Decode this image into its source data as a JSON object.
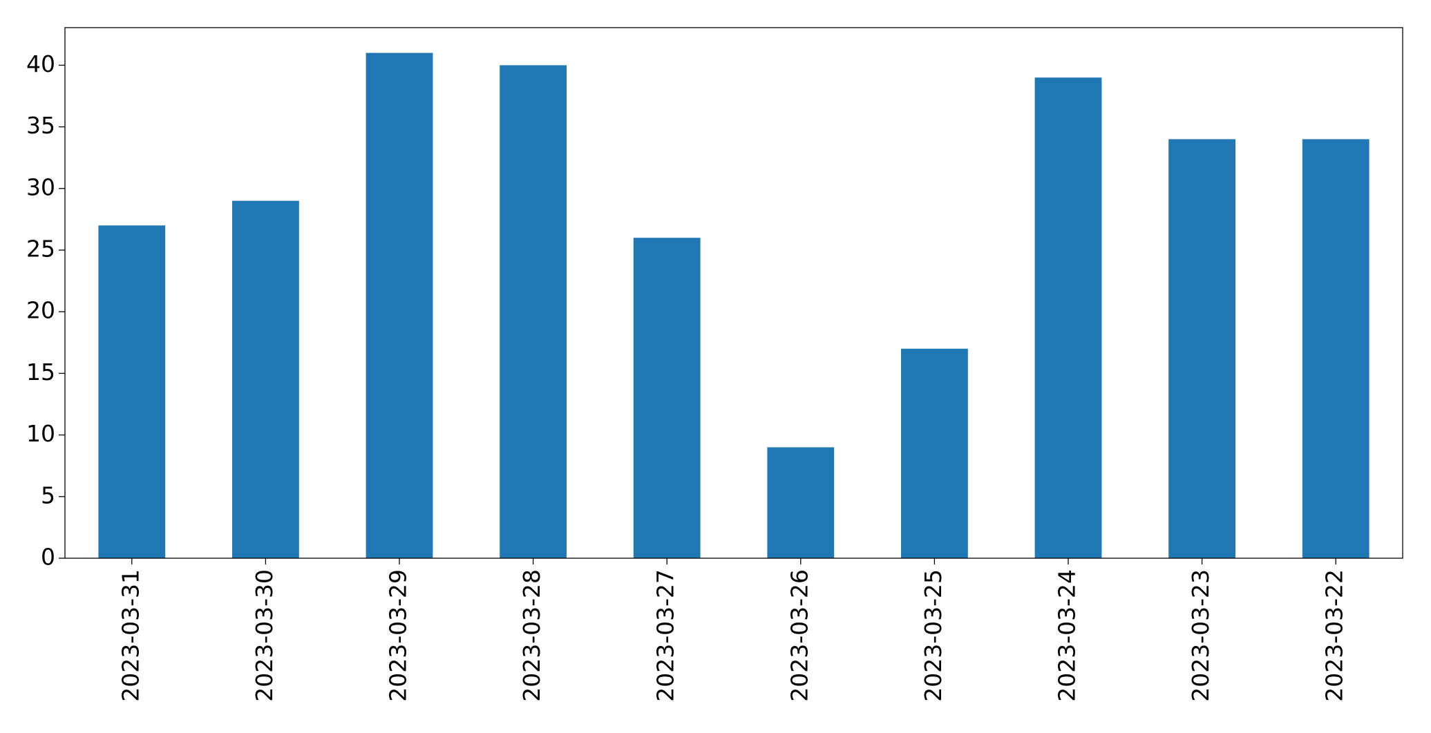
{
  "chart_data": {
    "type": "bar",
    "categories": [
      "2023-03-31",
      "2023-03-30",
      "2023-03-29",
      "2023-03-28",
      "2023-03-27",
      "2023-03-26",
      "2023-03-25",
      "2023-03-24",
      "2023-03-23",
      "2023-03-22"
    ],
    "values": [
      27,
      29,
      41,
      40,
      26,
      9,
      17,
      39,
      34,
      34
    ],
    "color": "#1f77b4",
    "ylim": [
      0,
      43.05
    ],
    "yticks": [
      0,
      5,
      10,
      15,
      20,
      25,
      30,
      35,
      40
    ],
    "grid": false
  }
}
